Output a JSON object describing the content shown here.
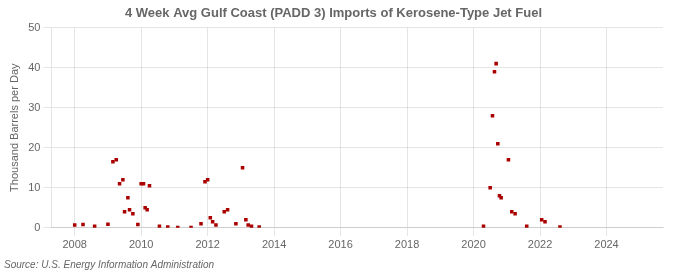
{
  "chart_data": {
    "type": "scatter",
    "title": "4 Week Avg Gulf Coast (PADD 3) Imports of Kerosene-Type Jet Fuel",
    "y_label": "Thousand Barrels per Day",
    "annotation": "Source: U.S. Energy Information Administration",
    "color": "#aa0000",
    "marker": "square",
    "grid": true,
    "xlim": [
      2007.3,
      2025.7
    ],
    "xticks": [
      2008,
      2010,
      2012,
      2014,
      2016,
      2018,
      2020,
      2022,
      2024
    ],
    "ylim": [
      0,
      50
    ],
    "yticks": [
      0,
      10,
      20,
      30,
      40,
      50
    ],
    "x": [
      2008.0,
      2008.25,
      2008.6,
      2009.0,
      2009.15,
      2009.25,
      2009.35,
      2009.45,
      2009.5,
      2009.6,
      2009.65,
      2009.75,
      2009.9,
      2010.0,
      2010.07,
      2010.12,
      2010.18,
      2010.25,
      2010.55,
      2010.8,
      2011.1,
      2011.5,
      2011.8,
      2011.92,
      2012.0,
      2012.08,
      2012.15,
      2012.25,
      2012.5,
      2012.6,
      2012.85,
      2013.05,
      2013.15,
      2013.22,
      2013.32,
      2013.55,
      2020.3,
      2020.5,
      2020.57,
      2020.63,
      2020.68,
      2020.73,
      2020.78,
      2020.83,
      2021.05,
      2021.15,
      2021.25,
      2021.6,
      2022.05,
      2022.15,
      2022.6
    ],
    "values": [
      0.7,
      0.8,
      0.4,
      0.9,
      16.5,
      17.0,
      11.0,
      12.0,
      4.0,
      7.5,
      4.5,
      3.5,
      0.8,
      11.0,
      11.0,
      5.0,
      4.5,
      10.5,
      0.4,
      0.2,
      0.1,
      0.1,
      1.0,
      11.5,
      12.0,
      2.5,
      1.5,
      0.7,
      4.0,
      4.5,
      1.0,
      15.0,
      2.0,
      0.7,
      0.4,
      0.2,
      0.4,
      10.0,
      28.0,
      39.0,
      41.0,
      21.0,
      8.0,
      7.5,
      17.0,
      4.0,
      3.5,
      0.4,
      2.0,
      1.5,
      0.2
    ]
  }
}
